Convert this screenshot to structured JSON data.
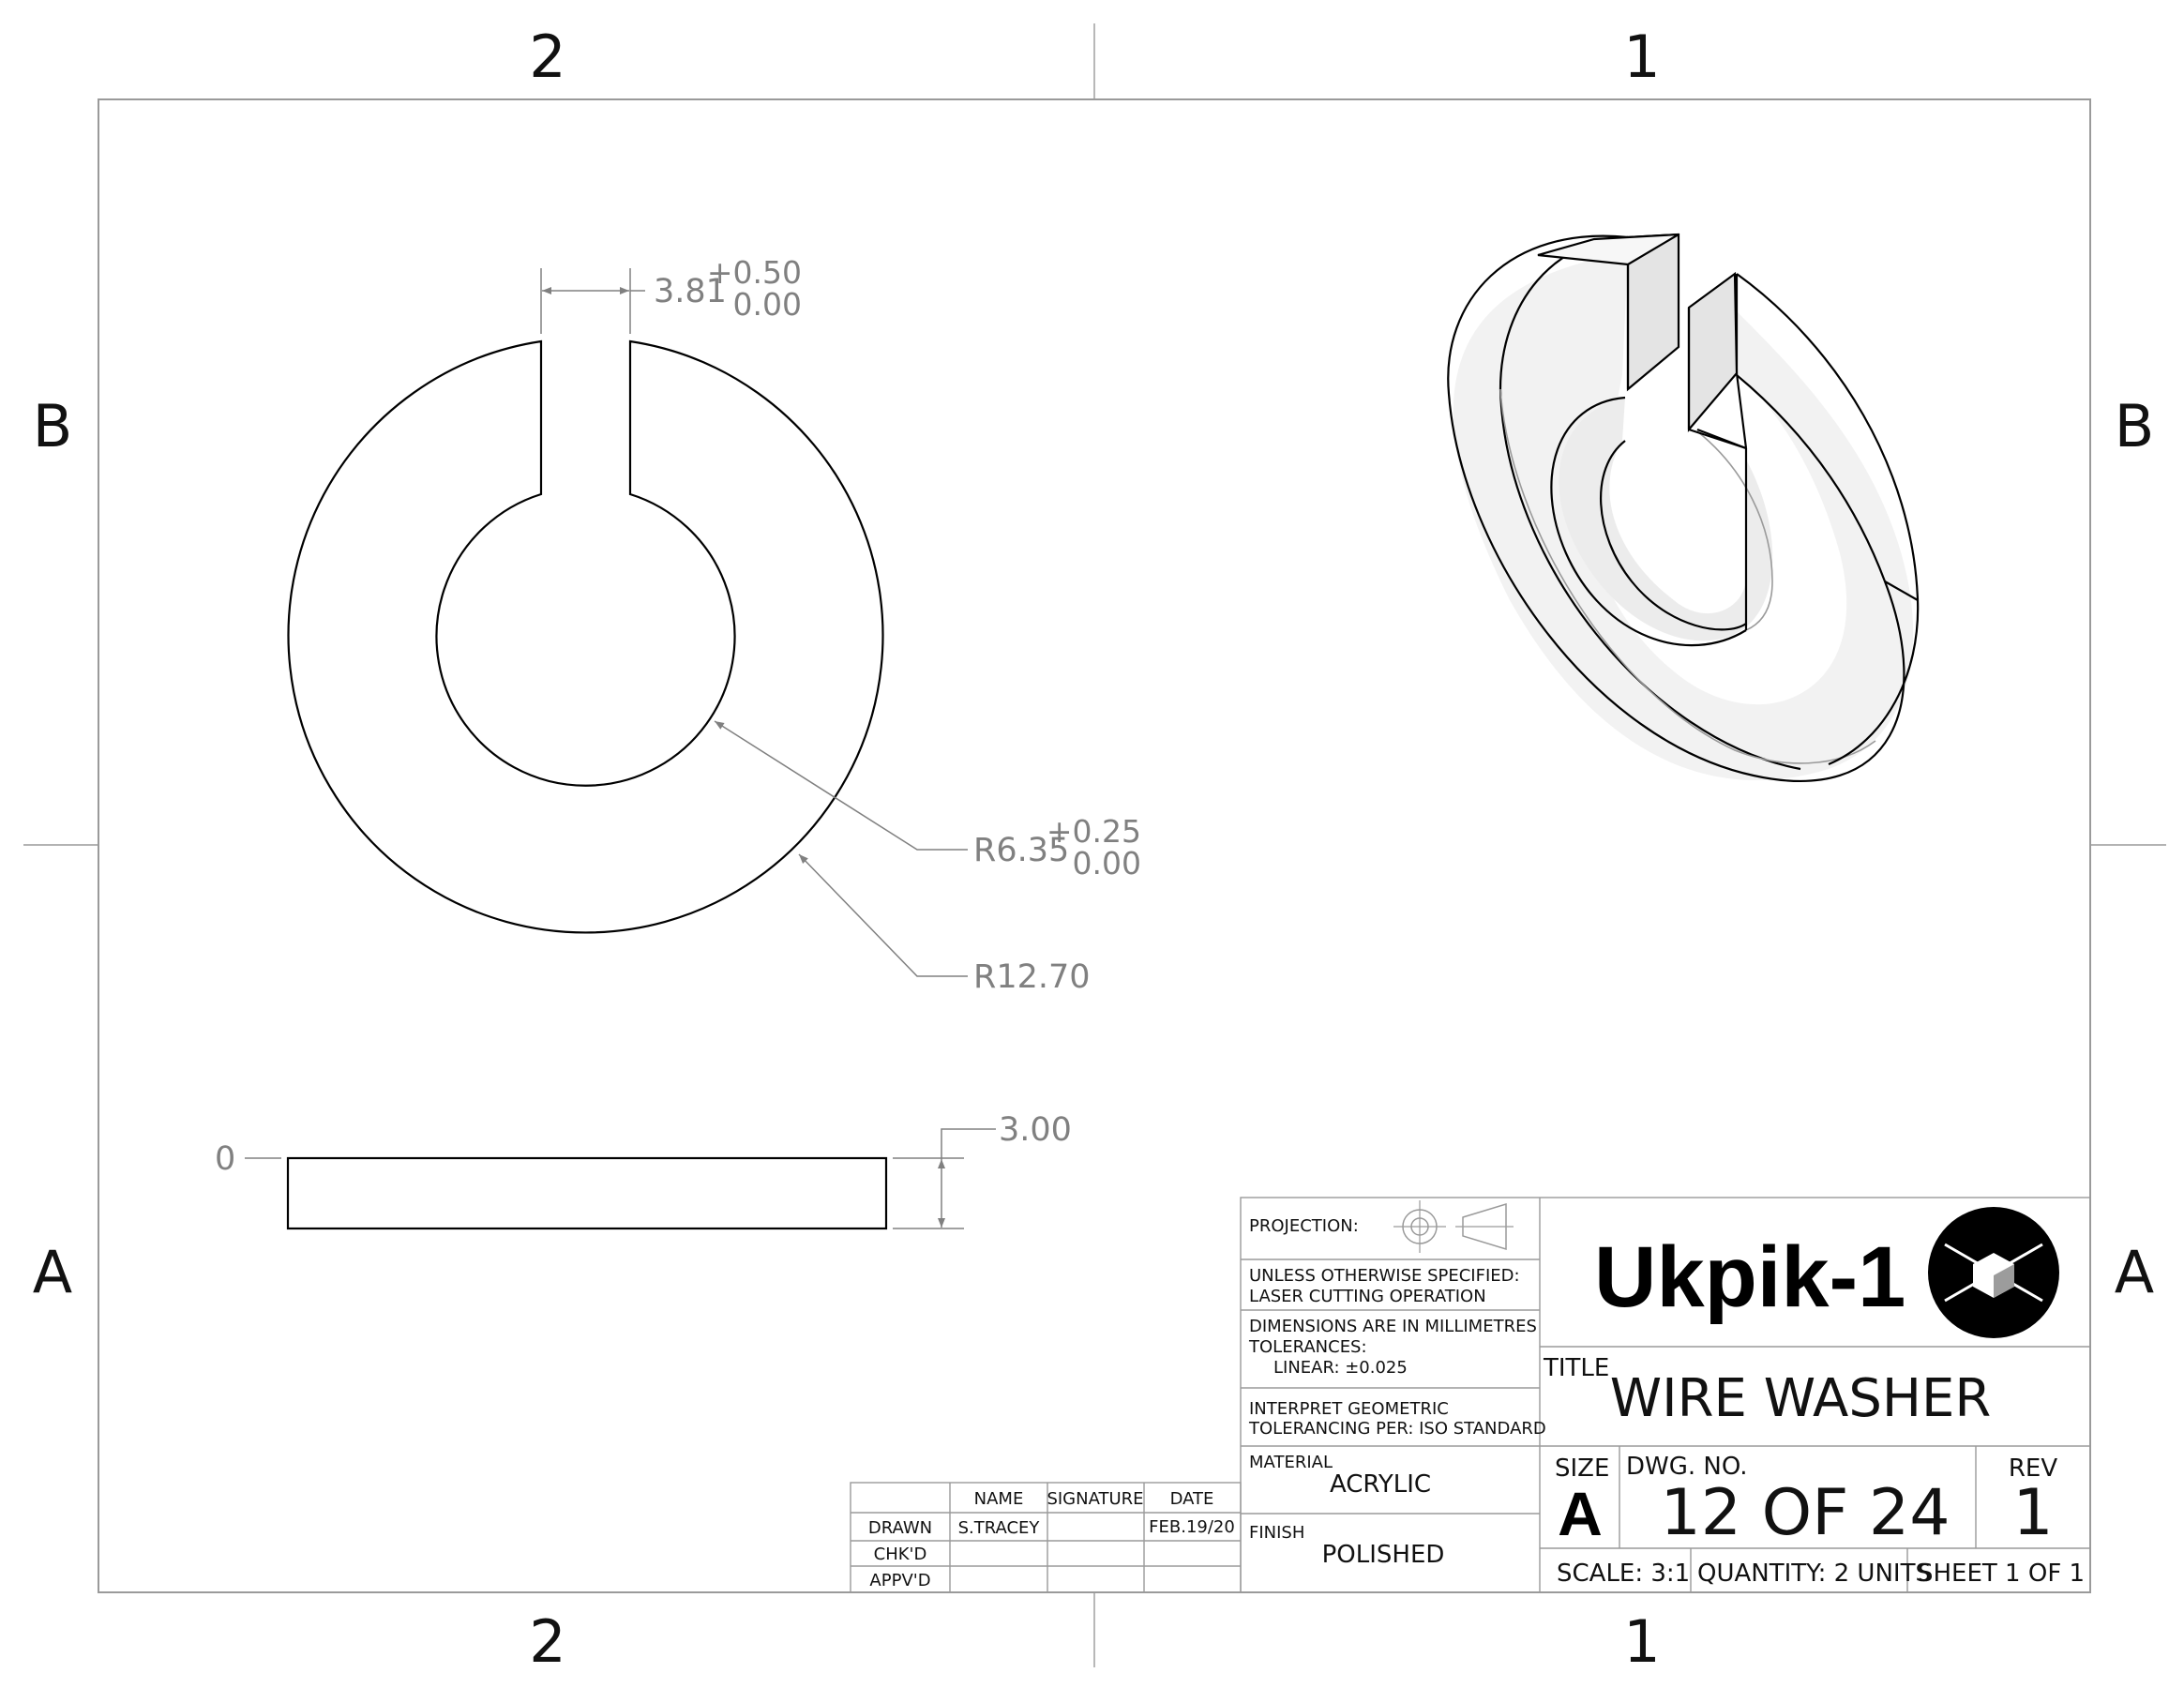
{
  "zones": {
    "top_left": "2",
    "top_right": "1",
    "bottom_left": "2",
    "bottom_right": "1",
    "left_upper": "B",
    "left_lower": "A",
    "right_upper": "B",
    "right_lower": "A"
  },
  "dimensions": {
    "slot_width": "3.81",
    "slot_tol_plus": "+0.50",
    "slot_tol_minus": "0.00",
    "inner_radius": "R6.35",
    "inner_tol_plus": "+0.25",
    "inner_tol_minus": "0.00",
    "outer_radius": "R12.70",
    "thickness": "3.00",
    "datum_zero": "0"
  },
  "title_block": {
    "projection_label": "PROJECTION:",
    "unless_line1": "UNLESS OTHERWISE SPECIFIED:",
    "unless_line2": "LASER CUTTING OPERATION",
    "dims_line1": "DIMENSIONS ARE IN MILLIMETRES",
    "dims_line2": "TOLERANCES:",
    "dims_line3": "LINEAR: ±0.025",
    "interpret_line1": "INTERPRET GEOMETRIC",
    "interpret_line2": "TOLERANCING PER: ISO STANDARD",
    "material_label": "MATERIAL",
    "material_value": "ACRYLIC",
    "finish_label": "FINISH",
    "finish_value": "POLISHED",
    "logo_text": "Ukpik-1",
    "title_label": "TITLE",
    "title_value": "WIRE WASHER",
    "size_label": "SIZE",
    "size_value": "A",
    "dwg_label": "DWG.  NO.",
    "dwg_value": "12 OF 24",
    "rev_label": "REV",
    "rev_value": "1",
    "scale": "SCALE: 3:1",
    "quantity": "QUANTITY: 2 UNITS",
    "sheet": "SHEET 1 OF 1"
  },
  "signoff": {
    "headers": [
      "NAME",
      "SIGNATURE",
      "DATE"
    ],
    "rows": [
      {
        "role": "DRAWN",
        "name": "S.TRACEY",
        "signature": "",
        "date": "FEB.19/20"
      },
      {
        "role": "CHK'D",
        "name": "",
        "signature": "",
        "date": ""
      },
      {
        "role": "APPV'D",
        "name": "",
        "signature": "",
        "date": ""
      }
    ]
  }
}
